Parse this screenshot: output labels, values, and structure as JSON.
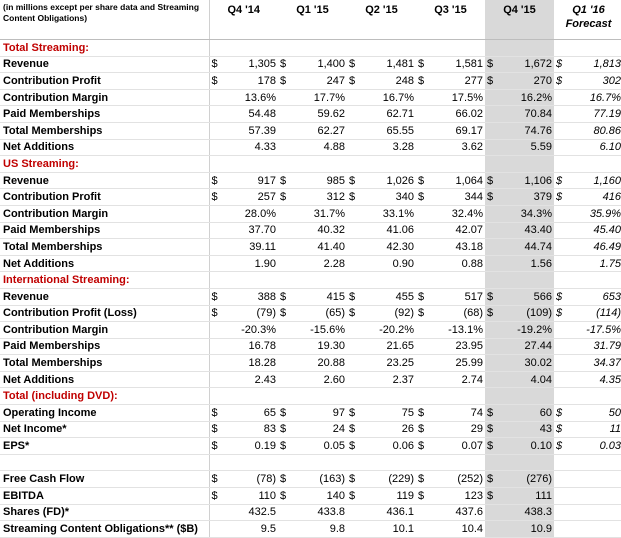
{
  "header": {
    "note": "(in millions except per share data and Streaming Content Obligations)",
    "quarters": [
      "Q4 '14",
      "Q1 '15",
      "Q2 '15",
      "Q3 '15",
      "Q4 '15",
      "Q1 '16"
    ],
    "forecast_label": "Forecast"
  },
  "rows": [
    {
      "type": "section",
      "label": "Total Streaming:"
    },
    {
      "type": "data",
      "label": "Revenue",
      "dollar": [
        true,
        true,
        true,
        true,
        true,
        true
      ],
      "values": [
        "1,305",
        "1,400",
        "1,481",
        "1,581",
        "1,672",
        "1,813"
      ]
    },
    {
      "type": "data",
      "label": "Contribution Profit",
      "dollar": [
        true,
        true,
        true,
        true,
        true,
        true
      ],
      "values": [
        "178",
        "247",
        "248",
        "277",
        "270",
        "302"
      ]
    },
    {
      "type": "data",
      "label": "Contribution Margin",
      "dollar": [
        false,
        false,
        false,
        false,
        false,
        false
      ],
      "values": [
        "13.6%",
        "17.7%",
        "16.7%",
        "17.5%",
        "16.2%",
        "16.7%"
      ]
    },
    {
      "type": "data",
      "label": "Paid Memberships",
      "dollar": [
        false,
        false,
        false,
        false,
        false,
        false
      ],
      "values": [
        "54.48",
        "59.62",
        "62.71",
        "66.02",
        "70.84",
        "77.19"
      ]
    },
    {
      "type": "data",
      "label": "Total Memberships",
      "dollar": [
        false,
        false,
        false,
        false,
        false,
        false
      ],
      "values": [
        "57.39",
        "62.27",
        "65.55",
        "69.17",
        "74.76",
        "80.86"
      ]
    },
    {
      "type": "data",
      "label": "Net Additions",
      "dollar": [
        false,
        false,
        false,
        false,
        false,
        false
      ],
      "values": [
        "4.33",
        "4.88",
        "3.28",
        "3.62",
        "5.59",
        "6.10"
      ]
    },
    {
      "type": "section",
      "label": "US Streaming:"
    },
    {
      "type": "data",
      "label": "Revenue",
      "dollar": [
        true,
        true,
        true,
        true,
        true,
        true
      ],
      "values": [
        "917",
        "985",
        "1,026",
        "1,064",
        "1,106",
        "1,160"
      ]
    },
    {
      "type": "data",
      "label": "Contribution Profit",
      "dollar": [
        true,
        true,
        true,
        true,
        true,
        true
      ],
      "values": [
        "257",
        "312",
        "340",
        "344",
        "379",
        "416"
      ]
    },
    {
      "type": "data",
      "label": "Contribution Margin",
      "dollar": [
        false,
        false,
        false,
        false,
        false,
        false
      ],
      "values": [
        "28.0%",
        "31.7%",
        "33.1%",
        "32.4%",
        "34.3%",
        "35.9%"
      ]
    },
    {
      "type": "data",
      "label": "Paid Memberships",
      "dollar": [
        false,
        false,
        false,
        false,
        false,
        false
      ],
      "values": [
        "37.70",
        "40.32",
        "41.06",
        "42.07",
        "43.40",
        "45.40"
      ]
    },
    {
      "type": "data",
      "label": "Total Memberships",
      "dollar": [
        false,
        false,
        false,
        false,
        false,
        false
      ],
      "values": [
        "39.11",
        "41.40",
        "42.30",
        "43.18",
        "44.74",
        "46.49"
      ]
    },
    {
      "type": "data",
      "label": "Net Additions",
      "dollar": [
        false,
        false,
        false,
        false,
        false,
        false
      ],
      "values": [
        "1.90",
        "2.28",
        "0.90",
        "0.88",
        "1.56",
        "1.75"
      ]
    },
    {
      "type": "section",
      "label": "International Streaming:"
    },
    {
      "type": "data",
      "label": "Revenue",
      "dollar": [
        true,
        true,
        true,
        true,
        true,
        true
      ],
      "values": [
        "388",
        "415",
        "455",
        "517",
        "566",
        "653"
      ]
    },
    {
      "type": "data",
      "label": "Contribution Profit (Loss)",
      "dollar": [
        true,
        true,
        true,
        true,
        true,
        true
      ],
      "values": [
        "(79)",
        "(65)",
        "(92)",
        "(68)",
        "(109)",
        "(114)"
      ]
    },
    {
      "type": "data",
      "label": "Contribution Margin",
      "dollar": [
        false,
        false,
        false,
        false,
        false,
        false
      ],
      "values": [
        "-20.3%",
        "-15.6%",
        "-20.2%",
        "-13.1%",
        "-19.2%",
        "-17.5%"
      ]
    },
    {
      "type": "data",
      "label": "Paid Memberships",
      "dollar": [
        false,
        false,
        false,
        false,
        false,
        false
      ],
      "values": [
        "16.78",
        "19.30",
        "21.65",
        "23.95",
        "27.44",
        "31.79"
      ]
    },
    {
      "type": "data",
      "label": "Total Memberships",
      "dollar": [
        false,
        false,
        false,
        false,
        false,
        false
      ],
      "values": [
        "18.28",
        "20.88",
        "23.25",
        "25.99",
        "30.02",
        "34.37"
      ]
    },
    {
      "type": "data",
      "label": "Net Additions",
      "dollar": [
        false,
        false,
        false,
        false,
        false,
        false
      ],
      "values": [
        "2.43",
        "2.60",
        "2.37",
        "2.74",
        "4.04",
        "4.35"
      ]
    },
    {
      "type": "section",
      "label": "Total (including DVD):"
    },
    {
      "type": "data",
      "label": "Operating Income",
      "dollar": [
        true,
        true,
        true,
        true,
        true,
        true
      ],
      "values": [
        "65",
        "97",
        "75",
        "74",
        "60",
        "50"
      ]
    },
    {
      "type": "data",
      "label": "Net Income*",
      "dollar": [
        true,
        true,
        true,
        true,
        true,
        true
      ],
      "values": [
        "83",
        "24",
        "26",
        "29",
        "43",
        "11"
      ]
    },
    {
      "type": "data",
      "label": "EPS*",
      "dollar": [
        true,
        true,
        true,
        true,
        true,
        true
      ],
      "values": [
        "0.19",
        "0.05",
        "0.06",
        "0.07",
        "0.10",
        "0.03"
      ]
    },
    {
      "type": "blank",
      "label": ""
    },
    {
      "type": "data",
      "label": "Free Cash Flow",
      "dollar": [
        true,
        true,
        true,
        true,
        true,
        false
      ],
      "values": [
        "(78)",
        "(163)",
        "(229)",
        "(252)",
        "(276)",
        ""
      ]
    },
    {
      "type": "data",
      "label": "EBITDA",
      "dollar": [
        true,
        true,
        true,
        true,
        true,
        false
      ],
      "values": [
        "110",
        "140",
        "119",
        "123",
        "111",
        ""
      ]
    },
    {
      "type": "data",
      "label": "Shares (FD)*",
      "dollar": [
        false,
        false,
        false,
        false,
        false,
        false
      ],
      "values": [
        "432.5",
        "433.8",
        "436.1",
        "437.6",
        "438.3",
        ""
      ]
    },
    {
      "type": "data",
      "label": "Streaming Content Obligations** ($B)",
      "dollar": [
        false,
        false,
        false,
        false,
        false,
        false
      ],
      "values": [
        "9.5",
        "9.8",
        "10.1",
        "10.4",
        "10.9",
        ""
      ]
    }
  ]
}
